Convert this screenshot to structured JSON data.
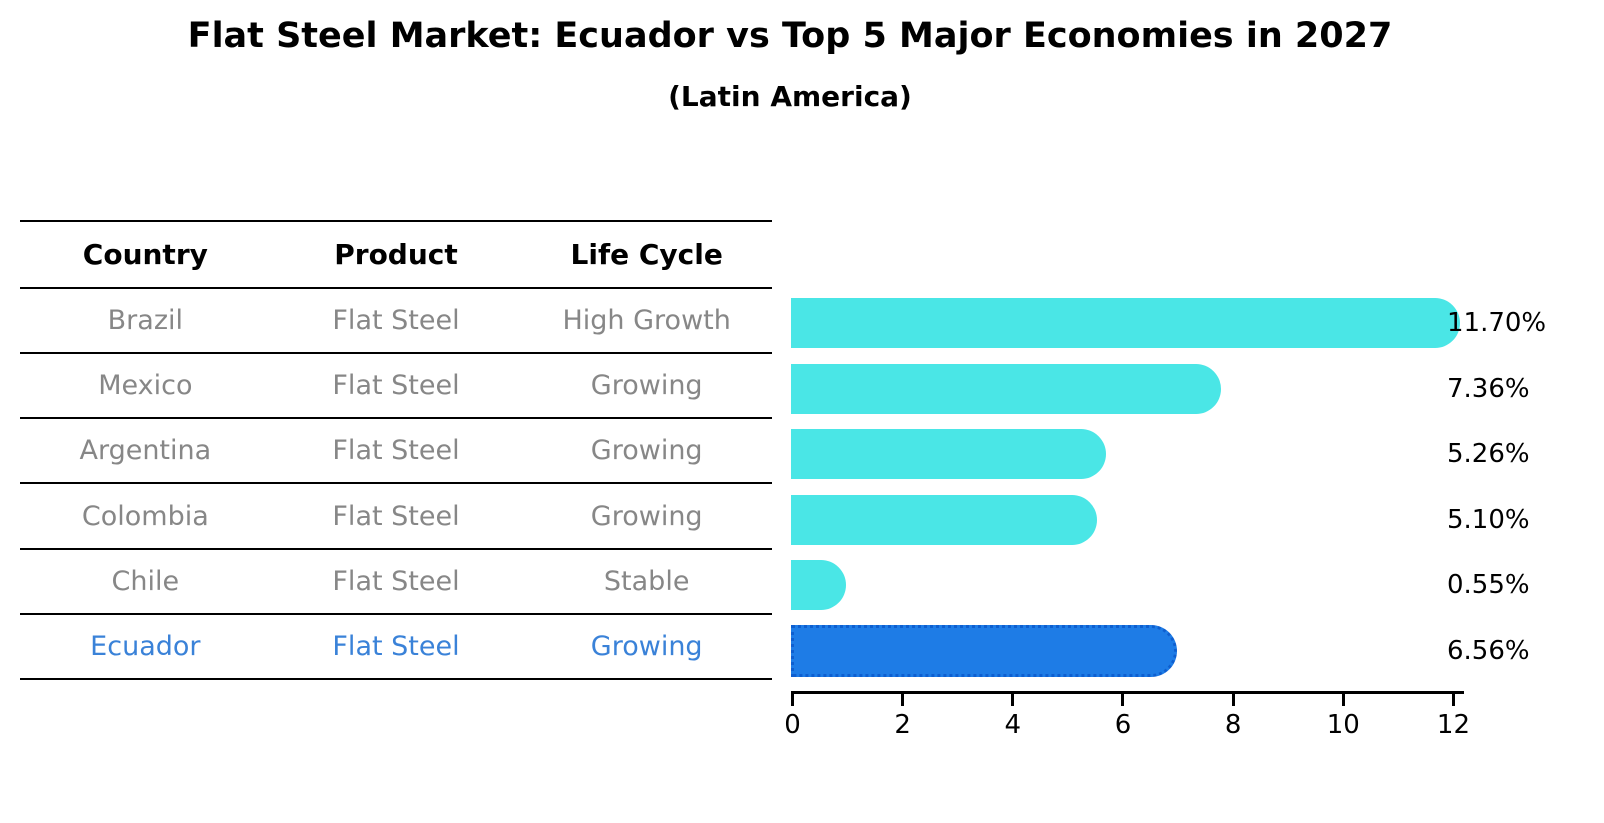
{
  "title": "Flat Steel Market: Ecuador vs Top 5 Major Economies in 2027",
  "subtitle": "(Latin America)",
  "table": {
    "headers": [
      "Country",
      "Product",
      "Life Cycle"
    ],
    "rows": [
      {
        "country": "Brazil",
        "product": "Flat Steel",
        "life_cycle": "High Growth",
        "highlight": false
      },
      {
        "country": "Mexico",
        "product": "Flat Steel",
        "life_cycle": "Growing",
        "highlight": false
      },
      {
        "country": "Argentina",
        "product": "Flat Steel",
        "life_cycle": "Growing",
        "highlight": false
      },
      {
        "country": "Colombia",
        "product": "Flat Steel",
        "life_cycle": "Growing",
        "highlight": false
      },
      {
        "country": "Chile",
        "product": "Flat Steel",
        "life_cycle": "Stable",
        "highlight": false
      },
      {
        "country": "Ecuador",
        "product": "Flat Steel",
        "life_cycle": "Growing",
        "highlight": true
      }
    ]
  },
  "chart_data": {
    "type": "bar",
    "orientation": "horizontal",
    "title": "Flat Steel Market: Ecuador vs Top 5 Major Economies in 2027",
    "subtitle": "(Latin America)",
    "categories": [
      "Brazil",
      "Mexico",
      "Argentina",
      "Colombia",
      "Chile",
      "Ecuador"
    ],
    "values": [
      11.7,
      7.36,
      5.26,
      5.1,
      0.55,
      6.56
    ],
    "value_labels": [
      "11.70%",
      "7.36%",
      "5.26%",
      "5.10%",
      "0.55%",
      "6.56%"
    ],
    "highlight_index": 5,
    "x_ticks": [
      0,
      2,
      4,
      6,
      8,
      10,
      12
    ],
    "xlim": [
      0,
      12
    ],
    "grid": false,
    "legend": "none",
    "colors": {
      "bar": "#4AE6E6",
      "highlight_bar": "#1E7CE6",
      "highlight_bar_edge": "#0E5FD0",
      "highlight_text": "#3A82D8",
      "table_text": "#878787",
      "axis_text": "#000000"
    }
  }
}
